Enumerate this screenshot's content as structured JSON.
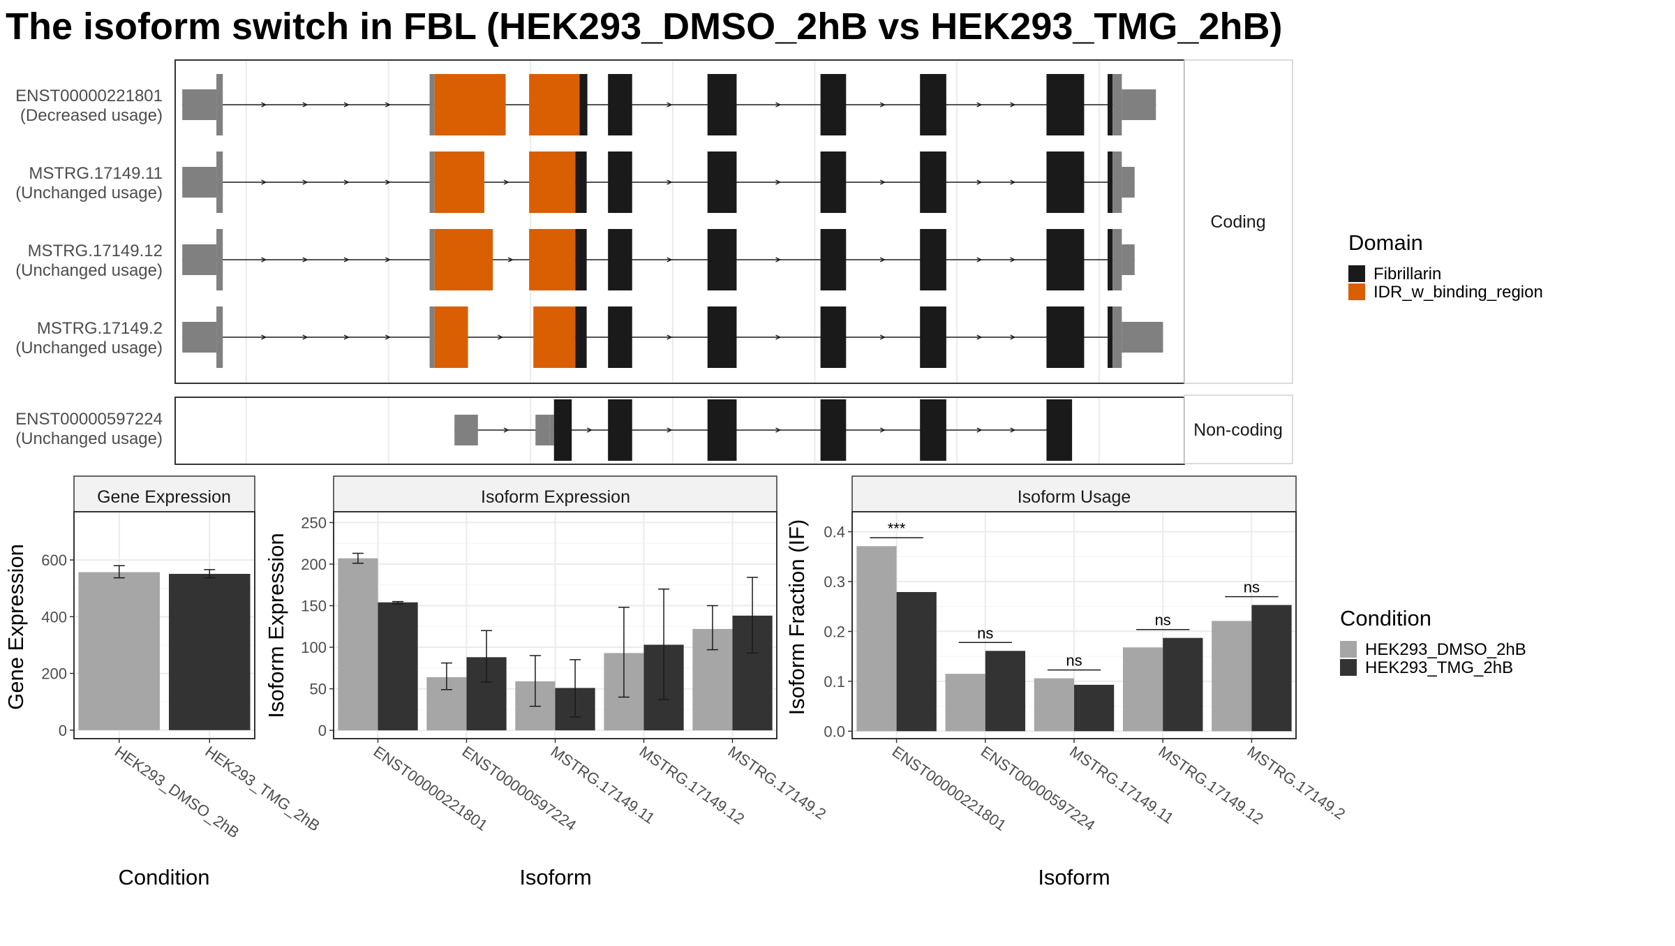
{
  "title": "The isoform switch in FBL (HEK293_DMSO_2hB vs HEK293_TMG_2hB)",
  "colors": {
    "fibrillarin": "#1a1a1a",
    "idr": "#d95f02",
    "utr": "#808080",
    "dmso": "#a6a6a6",
    "tmg": "#333333",
    "grid": "#ebebeb",
    "panel_border": "#333333",
    "strip_bg": "#f2f2f2"
  },
  "structure": {
    "coding_strip": "Coding",
    "noncoding_strip": "Non-coding",
    "transcripts": [
      {
        "id": "ENST00000221801",
        "usage": "(Decreased usage)",
        "group": "coding",
        "segments": [
          {
            "type": "utr",
            "start": 1.0,
            "end": 5.8
          },
          {
            "type": "utr",
            "start": 5.8,
            "end": 6.7
          },
          {
            "type": "cds",
            "start": 35.8,
            "end": 36.5
          },
          {
            "type": "idr",
            "start": 36.5,
            "end": 46.5
          },
          {
            "type": "idr",
            "start": 49.8,
            "end": 56.9
          },
          {
            "type": "fib",
            "start": 56.9,
            "end": 58.0
          },
          {
            "type": "fib",
            "start": 60.9,
            "end": 64.3
          },
          {
            "type": "fib",
            "start": 74.9,
            "end": 79.0
          },
          {
            "type": "fib",
            "start": 90.8,
            "end": 94.4
          },
          {
            "type": "fib",
            "start": 104.8,
            "end": 108.5
          },
          {
            "type": "fib",
            "start": 122.6,
            "end": 127.9
          },
          {
            "type": "fib",
            "start": 131.2,
            "end": 131.9
          },
          {
            "type": "utr",
            "start": 131.9,
            "end": 133.2
          },
          {
            "type": "utr",
            "start": 133.2,
            "end": 138.0
          }
        ]
      },
      {
        "id": "MSTRG.17149.11",
        "usage": "(Unchanged usage)",
        "group": "coding",
        "segments": [
          {
            "type": "utr",
            "start": 1.0,
            "end": 5.8
          },
          {
            "type": "utr",
            "start": 5.8,
            "end": 6.7
          },
          {
            "type": "cds",
            "start": 35.8,
            "end": 36.5
          },
          {
            "type": "idr",
            "start": 36.5,
            "end": 43.5
          },
          {
            "type": "idr",
            "start": 49.8,
            "end": 56.3
          },
          {
            "type": "fib",
            "start": 56.3,
            "end": 57.9
          },
          {
            "type": "fib",
            "start": 60.9,
            "end": 64.3
          },
          {
            "type": "fib",
            "start": 74.9,
            "end": 79.0
          },
          {
            "type": "fib",
            "start": 90.8,
            "end": 94.4
          },
          {
            "type": "fib",
            "start": 104.8,
            "end": 108.5
          },
          {
            "type": "fib",
            "start": 122.6,
            "end": 127.9
          },
          {
            "type": "fib",
            "start": 131.2,
            "end": 131.9
          },
          {
            "type": "utr",
            "start": 131.9,
            "end": 133.2
          },
          {
            "type": "utr",
            "start": 133.2,
            "end": 135.0
          }
        ]
      },
      {
        "id": "MSTRG.17149.12",
        "usage": "(Unchanged usage)",
        "group": "coding",
        "segments": [
          {
            "type": "utr",
            "start": 1.0,
            "end": 5.8
          },
          {
            "type": "utr",
            "start": 5.8,
            "end": 6.7
          },
          {
            "type": "cds",
            "start": 35.8,
            "end": 36.5
          },
          {
            "type": "idr",
            "start": 36.5,
            "end": 44.7
          },
          {
            "type": "idr",
            "start": 49.8,
            "end": 56.3
          },
          {
            "type": "fib",
            "start": 56.3,
            "end": 57.9
          },
          {
            "type": "fib",
            "start": 60.9,
            "end": 64.3
          },
          {
            "type": "fib",
            "start": 74.9,
            "end": 79.0
          },
          {
            "type": "fib",
            "start": 90.8,
            "end": 94.4
          },
          {
            "type": "fib",
            "start": 104.8,
            "end": 108.5
          },
          {
            "type": "fib",
            "start": 122.6,
            "end": 127.9
          },
          {
            "type": "fib",
            "start": 131.2,
            "end": 131.9
          },
          {
            "type": "utr",
            "start": 131.9,
            "end": 133.2
          },
          {
            "type": "utr",
            "start": 133.2,
            "end": 135.0
          }
        ]
      },
      {
        "id": "MSTRG.17149.2",
        "usage": "(Unchanged usage)",
        "group": "coding",
        "segments": [
          {
            "type": "utr",
            "start": 1.0,
            "end": 5.8
          },
          {
            "type": "utr",
            "start": 5.8,
            "end": 6.7
          },
          {
            "type": "cds",
            "start": 35.8,
            "end": 36.5
          },
          {
            "type": "idr",
            "start": 36.5,
            "end": 41.2
          },
          {
            "type": "idr",
            "start": 50.4,
            "end": 56.3
          },
          {
            "type": "fib",
            "start": 56.3,
            "end": 57.9
          },
          {
            "type": "fib",
            "start": 60.9,
            "end": 64.3
          },
          {
            "type": "fib",
            "start": 74.9,
            "end": 79.0
          },
          {
            "type": "fib",
            "start": 90.8,
            "end": 94.4
          },
          {
            "type": "fib",
            "start": 104.8,
            "end": 108.5
          },
          {
            "type": "fib",
            "start": 122.6,
            "end": 127.9
          },
          {
            "type": "fib",
            "start": 131.2,
            "end": 131.9
          },
          {
            "type": "utr",
            "start": 131.9,
            "end": 133.2
          },
          {
            "type": "utr",
            "start": 133.2,
            "end": 139.0
          }
        ]
      },
      {
        "id": "ENST00000597224",
        "usage": "(Unchanged usage)",
        "group": "noncoding",
        "segments": [
          {
            "type": "utr_nc",
            "start": 39.3,
            "end": 42.6
          },
          {
            "type": "utr_nc",
            "start": 50.7,
            "end": 52.7
          },
          {
            "type": "utr_nc",
            "start": 52.7,
            "end": 53.3
          },
          {
            "type": "fib",
            "start": 53.3,
            "end": 55.8
          },
          {
            "type": "fib",
            "start": 60.9,
            "end": 64.3
          },
          {
            "type": "fib",
            "start": 74.9,
            "end": 79.0
          },
          {
            "type": "fib",
            "start": 90.8,
            "end": 94.4
          },
          {
            "type": "fib",
            "start": 104.8,
            "end": 108.5
          },
          {
            "type": "fib",
            "start": 122.6,
            "end": 126.2
          }
        ]
      }
    ]
  },
  "legend_domain": {
    "title": "Domain",
    "items": [
      {
        "label": "Fibrillarin",
        "color": "#1a1a1a"
      },
      {
        "label": "IDR_w_binding_region",
        "color": "#d95f02"
      }
    ]
  },
  "legend_condition": {
    "title": "Condition",
    "items": [
      {
        "label": "HEK293_DMSO_2hB",
        "color": "#a6a6a6"
      },
      {
        "label": "HEK293_TMG_2hB",
        "color": "#333333"
      }
    ]
  },
  "chart_data": [
    {
      "type": "bar",
      "title": "Gene Expression",
      "xlabel": "Condition",
      "ylabel": "Gene Expression",
      "categories": [
        "HEK293_DMSO_2hB",
        "HEK293_TMG_2hB"
      ],
      "values": [
        557,
        551
      ],
      "error_low": [
        537,
        537
      ],
      "error_high": [
        580,
        566
      ],
      "ylim": [
        -30,
        770
      ],
      "yticks": [
        0,
        200,
        400,
        600
      ]
    },
    {
      "type": "bar",
      "title": "Isoform Expression",
      "xlabel": "Isoform",
      "ylabel": "Isoform Expression",
      "categories": [
        "ENST00000221801",
        "ENST00000597224",
        "MSTRG.17149.11",
        "MSTRG.17149.12",
        "MSTRG.17149.2"
      ],
      "series": [
        {
          "name": "HEK293_DMSO_2hB",
          "values": [
            207,
            64,
            59,
            93,
            122
          ],
          "error_low": [
            201,
            49,
            29,
            40,
            97
          ],
          "error_high": [
            213,
            81,
            90,
            148,
            150
          ]
        },
        {
          "name": "HEK293_TMG_2hB",
          "values": [
            154,
            88,
            51,
            103,
            138
          ],
          "error_low": [
            152,
            58,
            16,
            37,
            93
          ],
          "error_high": [
            155,
            120,
            85,
            170,
            184
          ]
        }
      ],
      "ylim": [
        -10,
        263
      ],
      "yticks": [
        0,
        50,
        100,
        150,
        200,
        250
      ]
    },
    {
      "type": "bar",
      "title": "Isoform Usage",
      "xlabel": "Isoform",
      "ylabel": "Isoform Fraction (IF)",
      "categories": [
        "ENST00000221801",
        "ENST00000597224",
        "MSTRG.17149.11",
        "MSTRG.17149.12",
        "MSTRG.17149.2"
      ],
      "series": [
        {
          "name": "HEK293_DMSO_2hB",
          "values": [
            0.371,
            0.115,
            0.106,
            0.168,
            0.221
          ]
        },
        {
          "name": "HEK293_TMG_2hB",
          "values": [
            0.279,
            0.161,
            0.093,
            0.187,
            0.253
          ]
        }
      ],
      "significance": [
        "***",
        "ns",
        "ns",
        "ns",
        "ns"
      ],
      "ylim": [
        -0.015,
        0.44
      ],
      "yticks": [
        "0.0",
        "0.1",
        "0.2",
        "0.3",
        "0.4"
      ]
    }
  ]
}
